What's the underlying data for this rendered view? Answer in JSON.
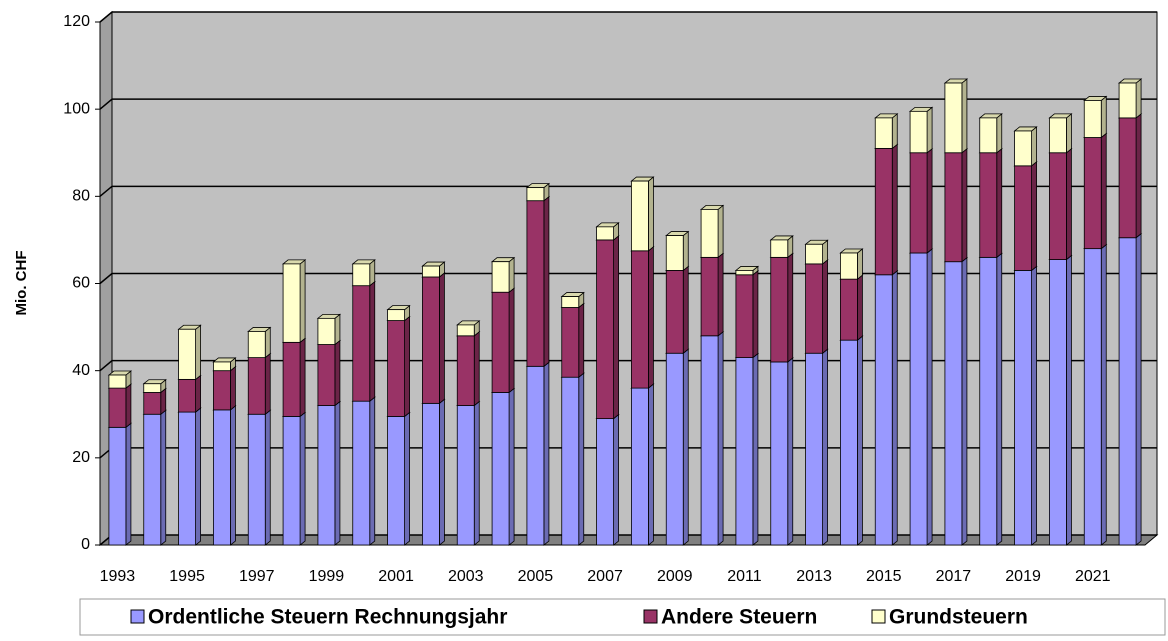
{
  "chart_data": {
    "type": "bar",
    "stacked": true,
    "ylabel": "Mio. CHF",
    "categories": [
      "1993",
      null,
      "1995",
      null,
      "1997",
      null,
      "1999",
      null,
      "2001",
      null,
      "2003",
      null,
      "2005",
      null,
      "2007",
      null,
      "2009",
      null,
      "2011",
      null,
      "2013",
      null,
      "2015",
      null,
      "2017",
      null,
      "2019",
      null,
      "2021",
      null
    ],
    "series": [
      {
        "name": "Ordentliche Steuern Rechnungsjahr",
        "color": "#9999ff",
        "values": [
          27,
          30,
          30.5,
          31,
          30,
          29.5,
          32,
          33,
          29.5,
          32.5,
          32,
          35,
          41,
          38.5,
          29,
          36,
          44,
          48,
          43,
          42,
          44,
          47,
          62,
          67,
          65,
          66,
          63,
          65.5,
          68,
          70.5
        ]
      },
      {
        "name": "Andere Steuern",
        "color": "#993366",
        "values": [
          9,
          5,
          7.5,
          9,
          13,
          17,
          14,
          26.5,
          22,
          29,
          16,
          23,
          38,
          16,
          41,
          31.5,
          19,
          18,
          19,
          24,
          20.5,
          14,
          29,
          23,
          25,
          24,
          24,
          24.5,
          25.5,
          27.5
        ]
      },
      {
        "name": "Grundsteuern",
        "color": "#ffffcc",
        "values": [
          3,
          2,
          11.5,
          2,
          6,
          18,
          6,
          5,
          2.5,
          2.5,
          2.5,
          7,
          3,
          2.5,
          3,
          16,
          8,
          11,
          1,
          4,
          4.5,
          6,
          7,
          9.5,
          16,
          8,
          8,
          8,
          8.5,
          8
        ]
      }
    ],
    "ylim": [
      0,
      120
    ],
    "yticks": [
      0,
      20,
      40,
      60,
      80,
      100,
      120
    ],
    "grid": true,
    "legend": "bottom"
  }
}
